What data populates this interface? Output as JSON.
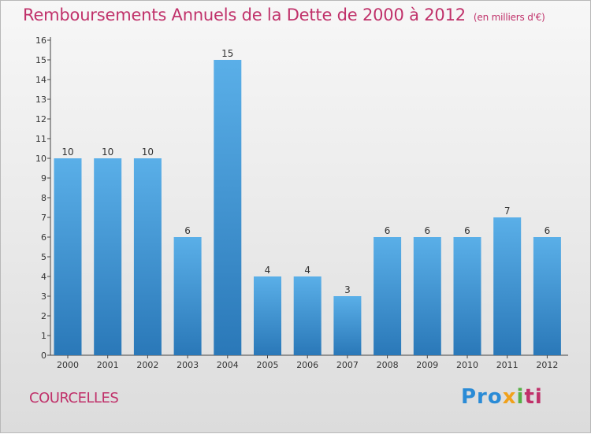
{
  "header": {
    "title": "Remboursements Annuels de la Dette de 2000 à 2012",
    "unit": "(en milliers d'€)"
  },
  "footer": {
    "town": "COURCELLES",
    "logo": "Proxiti"
  },
  "colors": {
    "title": "#c0316a",
    "bar_top": "#5aafe8",
    "bar_bottom": "#2a78b8"
  },
  "chart_data": {
    "type": "bar",
    "categories": [
      "2000",
      "2001",
      "2002",
      "2003",
      "2004",
      "2005",
      "2006",
      "2007",
      "2008",
      "2009",
      "2010",
      "2011",
      "2012"
    ],
    "values": [
      10,
      10,
      10,
      6,
      15,
      4,
      4,
      3,
      6,
      6,
      6,
      7,
      6
    ],
    "ylim": [
      0,
      16
    ],
    "yticks": [
      0,
      1,
      2,
      3,
      4,
      5,
      6,
      7,
      8,
      9,
      10,
      11,
      12,
      13,
      14,
      15,
      16
    ],
    "grid": false,
    "data_labels": true
  }
}
